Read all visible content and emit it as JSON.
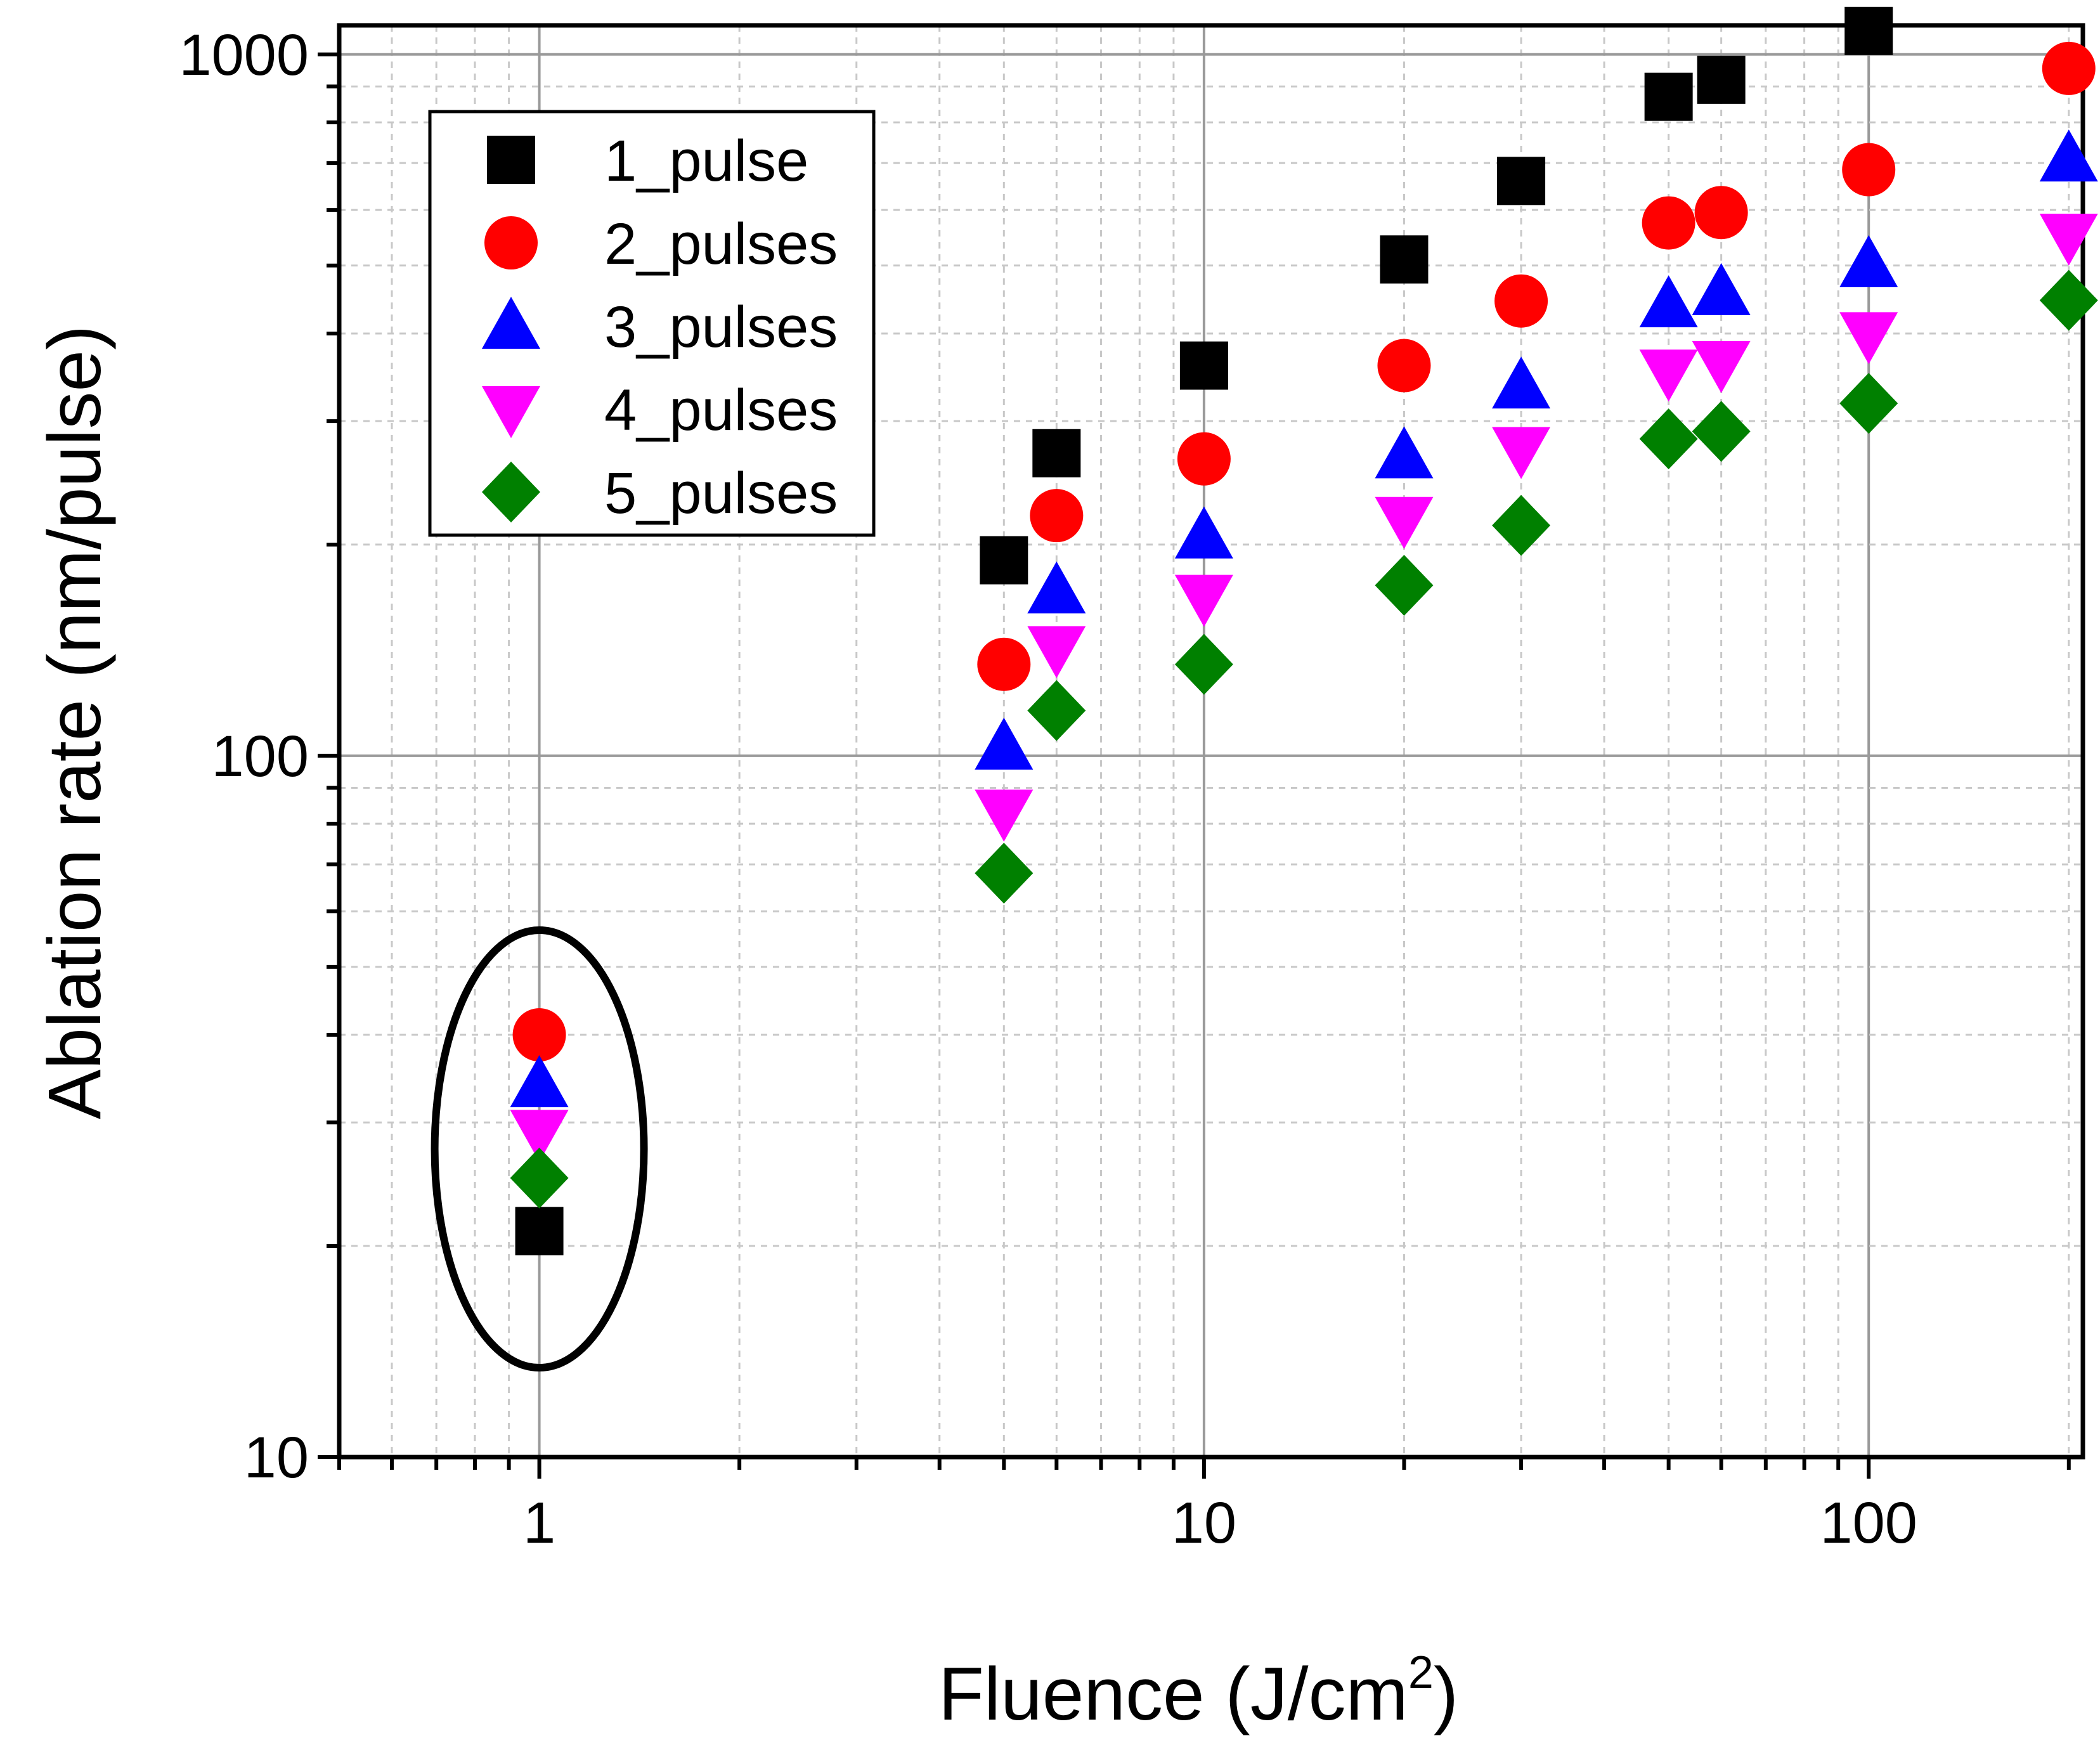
{
  "chart_data": {
    "type": "scatter",
    "title": "",
    "xlabel": "Fluence (J/cm",
    "xlabel_sup": "2",
    "xlabel_close": ")",
    "ylabel": "Ablation rate (nm/pulse)",
    "xscale": "log",
    "yscale": "log",
    "xlim": [
      0.5,
      210
    ],
    "ylim": [
      10,
      1100
    ],
    "xticks": [
      {
        "value": 1,
        "label": "1"
      },
      {
        "value": 10,
        "label": "10"
      },
      {
        "value": 100,
        "label": "100"
      }
    ],
    "yticks": [
      {
        "value": 10,
        "label": "10"
      },
      {
        "value": 100,
        "label": "100"
      },
      {
        "value": 1000,
        "label": "1000"
      }
    ],
    "grid": true,
    "legend_position": "top-left",
    "annotation": {
      "type": "ellipse",
      "note": "circles the data at fluence 1"
    },
    "series": [
      {
        "name": "1_pulse",
        "marker": "square",
        "color": "#000000",
        "x": [
          1,
          5,
          6,
          10,
          20,
          30,
          50,
          60,
          100,
          200
        ],
        "y": [
          21,
          190,
          270,
          360,
          510,
          660,
          870,
          920,
          1080,
          null
        ]
      },
      {
        "name": "2_pulses",
        "marker": "circle",
        "color": "#ff0000",
        "x": [
          1,
          5,
          6,
          10,
          20,
          30,
          50,
          60,
          100,
          200
        ],
        "y": [
          40,
          135,
          220,
          265,
          360,
          445,
          575,
          595,
          685,
          955
        ]
      },
      {
        "name": "3_pulses",
        "marker": "triangle-up",
        "color": "#0000ff",
        "x": [
          1,
          5,
          6,
          10,
          20,
          30,
          50,
          60,
          100,
          200
        ],
        "y": [
          34,
          103,
          172,
          206,
          268,
          337,
          440,
          458,
          502,
          710
        ]
      },
      {
        "name": "4_pulses",
        "marker": "triangle-down",
        "color": "#ff00ff",
        "x": [
          1,
          5,
          6,
          10,
          20,
          30,
          50,
          60,
          100,
          200
        ],
        "y": [
          29,
          83,
          142,
          168,
          217,
          273,
          352,
          362,
          398,
          550
        ]
      },
      {
        "name": "5_pulses",
        "marker": "diamond",
        "color": "#008000",
        "x": [
          1,
          5,
          6,
          10,
          20,
          30,
          50,
          60,
          100,
          200
        ],
        "y": [
          25,
          68,
          116,
          135,
          175,
          213,
          283,
          290,
          318,
          446
        ]
      }
    ]
  }
}
